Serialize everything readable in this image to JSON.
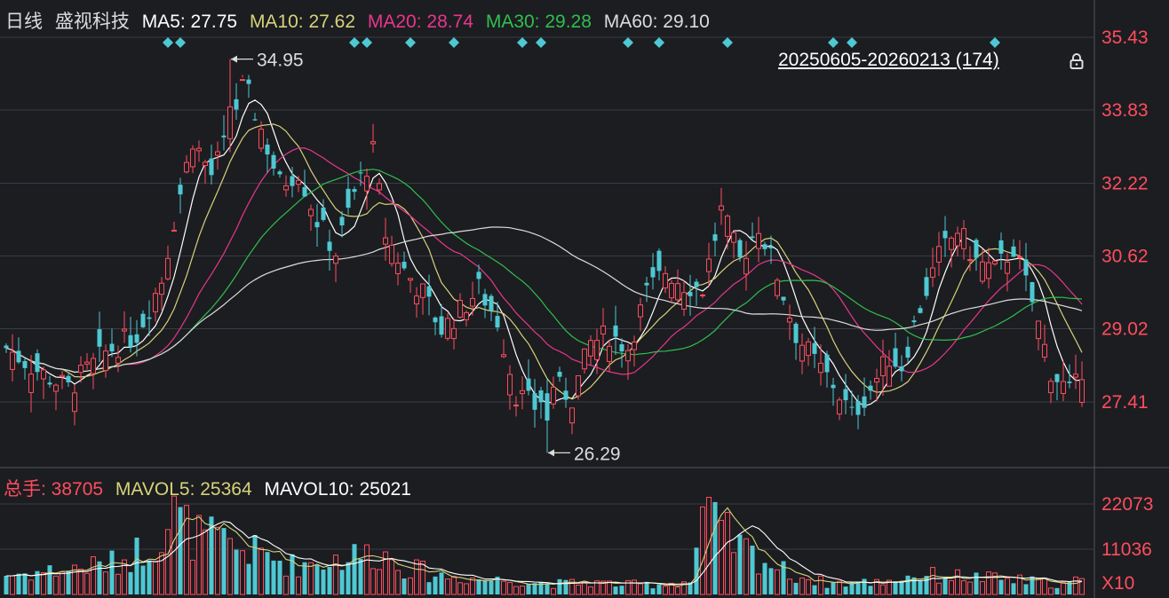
{
  "header": {
    "period": "日线",
    "stock_name": "盛视科技",
    "ma": [
      {
        "label": "MA5: 27.75",
        "color": "#ffffff"
      },
      {
        "label": "MA10: 27.62",
        "color": "#d6d27a"
      },
      {
        "label": "MA20: 28.74",
        "color": "#e8368c"
      },
      {
        "label": "MA30: 29.28",
        "color": "#2fbf4e"
      },
      {
        "label": "MA60: 29.10",
        "color": "#dcdcdc"
      }
    ]
  },
  "date_range": {
    "label": "20250605-20260213 (174)",
    "icon": "lock-icon"
  },
  "volume_header": {
    "total": {
      "label": "总手: 38705",
      "color": "#ff4d5e"
    },
    "mavol5": {
      "label": "MAVOL5: 25364",
      "color": "#d6d27a"
    },
    "mavol10": {
      "label": "MAVOL10: 25021",
      "color": "#ffffff"
    }
  },
  "colors": {
    "up": "#ff4d5e",
    "down": "#4ec8d2",
    "background": "#1c1d21",
    "grid": "#3a3c44",
    "axis_text": "#ff4d5e",
    "marker": "#4ec8d2"
  },
  "chart_data": [
    {
      "type": "candlestick",
      "title": "盛视科技 日线",
      "count": 174,
      "y_ticks": [
        "35.43",
        "33.83",
        "32.22",
        "30.62",
        "29.02",
        "27.41"
      ],
      "ylim": [
        26.29,
        35.43
      ],
      "high_label": "34.95",
      "low_label": "26.29",
      "grid": true,
      "close_path": [
        [
          0,
          28.6
        ],
        [
          5,
          28.1
        ],
        [
          10,
          27.7
        ],
        [
          16,
          28.5
        ],
        [
          21,
          28.9
        ],
        [
          25,
          30.1
        ],
        [
          27,
          31.4
        ],
        [
          30,
          33.2
        ],
        [
          33,
          32.4
        ],
        [
          36,
          33.3
        ],
        [
          38,
          34.5
        ],
        [
          41,
          33.4
        ],
        [
          44,
          32.2
        ],
        [
          47,
          32.5
        ],
        [
          50,
          31.4
        ],
        [
          53,
          30.7
        ],
        [
          56,
          32.0
        ],
        [
          59,
          32.9
        ],
        [
          61,
          31.1
        ],
        [
          64,
          30.3
        ],
        [
          67,
          29.8
        ],
        [
          70,
          29.0
        ],
        [
          73,
          29.4
        ],
        [
          76,
          29.9
        ],
        [
          79,
          29.2
        ],
        [
          82,
          27.6
        ],
        [
          85,
          27.3
        ],
        [
          88,
          27.8
        ],
        [
          91,
          27.5
        ],
        [
          94,
          28.7
        ],
        [
          97,
          28.9
        ],
        [
          100,
          28.6
        ],
        [
          103,
          29.8
        ],
        [
          106,
          30.3
        ],
        [
          109,
          30.0
        ],
        [
          112,
          29.9
        ],
        [
          115,
          31.6
        ],
        [
          118,
          30.5
        ],
        [
          121,
          31.3
        ],
        [
          124,
          30.2
        ],
        [
          127,
          28.9
        ],
        [
          130,
          28.3
        ],
        [
          133,
          27.8
        ],
        [
          136,
          27.1
        ],
        [
          139,
          27.7
        ],
        [
          142,
          28.4
        ],
        [
          144,
          28.2
        ],
        [
          147,
          29.5
        ],
        [
          150,
          30.6
        ],
        [
          153,
          31.2
        ],
        [
          156,
          30.5
        ],
        [
          159,
          30.3
        ],
        [
          162,
          30.8
        ],
        [
          165,
          29.6
        ],
        [
          168,
          28.1
        ],
        [
          171,
          27.6
        ],
        [
          173,
          27.9
        ]
      ],
      "ma_series": [
        {
          "name": "MA5",
          "period": 5,
          "color": "#ffffff"
        },
        {
          "name": "MA10",
          "period": 10,
          "color": "#d6d27a"
        },
        {
          "name": "MA20",
          "period": 20,
          "color": "#e8368c"
        },
        {
          "name": "MA30",
          "period": 30,
          "color": "#2fbf4e"
        },
        {
          "name": "MA60",
          "period": 60,
          "color": "#dcdcdc"
        }
      ],
      "signal_marker_indices": [
        26,
        28,
        56,
        58,
        65,
        72,
        83,
        86,
        100,
        105,
        116,
        133,
        136,
        159
      ]
    },
    {
      "type": "bar",
      "title": "成交量",
      "y_ticks": [
        "22073",
        "11036"
      ],
      "unit_label": "X10",
      "ylim": [
        0,
        26000
      ],
      "volume_path": [
        [
          0,
          4800
        ],
        [
          10,
          6100
        ],
        [
          18,
          7800
        ],
        [
          24,
          13000
        ],
        [
          27,
          19500
        ],
        [
          30,
          14500
        ],
        [
          34,
          13000
        ],
        [
          38,
          11000
        ],
        [
          42,
          9500
        ],
        [
          46,
          7200
        ],
        [
          52,
          8400
        ],
        [
          56,
          9500
        ],
        [
          60,
          10200
        ],
        [
          65,
          6300
        ],
        [
          70,
          4600
        ],
        [
          76,
          3800
        ],
        [
          82,
          3400
        ],
        [
          88,
          2600
        ],
        [
          94,
          2900
        ],
        [
          100,
          2400
        ],
        [
          106,
          2600
        ],
        [
          110,
          3200
        ],
        [
          112,
          19000
        ],
        [
          114,
          16500
        ],
        [
          118,
          11500
        ],
        [
          122,
          8200
        ],
        [
          126,
          5000
        ],
        [
          132,
          2800
        ],
        [
          140,
          3000
        ],
        [
          146,
          4700
        ],
        [
          152,
          4500
        ],
        [
          158,
          3900
        ],
        [
          164,
          3300
        ],
        [
          170,
          2500
        ],
        [
          173,
          3600
        ]
      ],
      "ma_series": [
        {
          "name": "MAVOL5",
          "period": 5,
          "color": "#d6d27a"
        },
        {
          "name": "MAVOL10",
          "period": 10,
          "color": "#ffffff"
        }
      ]
    }
  ]
}
